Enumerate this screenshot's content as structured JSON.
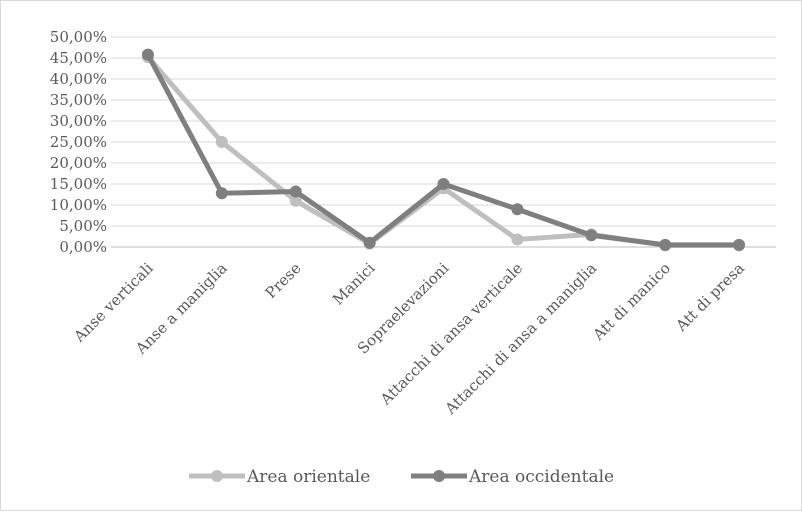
{
  "chart_data": {
    "type": "line",
    "categories": [
      "Anse verticali",
      "Anse a maniglia",
      "Prese",
      "Manici",
      "Sopraelevazioni",
      "Attacchi di ansa verticale",
      "Attacchi di ansa a maniglia",
      "Att di manico",
      "Att di presa"
    ],
    "series": [
      {
        "name": "Area orientale",
        "color": "#bfbfbf",
        "values": [
          45.2,
          25.0,
          11.0,
          0.8,
          14.0,
          1.8,
          3.0,
          0.4,
          0.4
        ]
      },
      {
        "name": "Area occidentale",
        "color": "#7f7f7f",
        "values": [
          45.8,
          12.8,
          13.2,
          1.0,
          15.0,
          9.0,
          2.8,
          0.5,
          0.5
        ]
      }
    ],
    "yticks": [
      "0,00%",
      "5,00%",
      "10,00%",
      "15,00%",
      "20,00%",
      "25,00%",
      "30,00%",
      "35,00%",
      "40,00%",
      "45,00%",
      "50,00%"
    ],
    "ylim": [
      0,
      50
    ],
    "grid": true,
    "legend": "bottom"
  }
}
